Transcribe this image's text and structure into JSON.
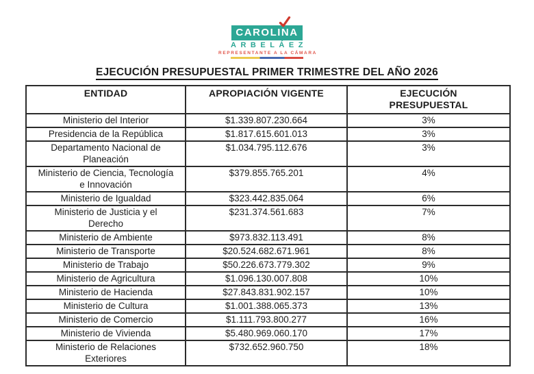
{
  "logo": {
    "name": "CAROLINA",
    "surname": "ARBELÁEZ",
    "subtitle": "REPRESENTANTE A LA CÁMARA",
    "colors": {
      "teal": "#2ca795",
      "subtitle_red": "#e0554a",
      "checkmark_red": "#cf3a2e",
      "flag_yellow": "#ecc94d",
      "flag_blue": "#4668b0",
      "flag_red": "#d94b41"
    }
  },
  "title": "EJECUCIÓN PRESUPUESTAL PRIMER TRIMESTRE DEL AÑO 2026",
  "table": {
    "columns": [
      "ENTIDAD",
      "APROPIACIÓN VIGENTE",
      "EJECUCIÓN\nPRESUPUESTAL"
    ],
    "rows": [
      {
        "entity": "Ministerio del Interior",
        "appropriation": "$1.339.807.230.664",
        "execution": "3%"
      },
      {
        "entity": "Presidencia de la República",
        "appropriation": "$1.817.615.601.013",
        "execution": "3%"
      },
      {
        "entity": "Departamento Nacional de Planeación",
        "appropriation": "$1.034.795.112.676",
        "execution": "3%"
      },
      {
        "entity": "Ministerio de Ciencia, Tecnología e Innovación",
        "appropriation": "$379.855.765.201",
        "execution": "4%"
      },
      {
        "entity": "Ministerio de Igualdad",
        "appropriation": "$323.442.835.064",
        "execution": "6%"
      },
      {
        "entity": "Ministerio de Justicia y el Derecho",
        "appropriation": "$231.374.561.683",
        "execution": "7%"
      },
      {
        "entity": "Ministerio de Ambiente",
        "appropriation": "$973.832.113.491",
        "execution": "8%"
      },
      {
        "entity": "Ministerio de Transporte",
        "appropriation": "$20.524.682.671.961",
        "execution": "8%"
      },
      {
        "entity": "Ministerio de Trabajo",
        "appropriation": "$50.226.673.779.302",
        "execution": "9%"
      },
      {
        "entity": "Ministerio de Agricultura",
        "appropriation": "$1.096.130.007.808",
        "execution": "10%"
      },
      {
        "entity": "Ministerio de Hacienda",
        "appropriation": "$27.843.831.902.157",
        "execution": "10%"
      },
      {
        "entity": "Ministerio de Cultura",
        "appropriation": "$1.001.388.065.373",
        "execution": "13%"
      },
      {
        "entity": "Ministerio de Comercio",
        "appropriation": "$1.111.793.800.277",
        "execution": "16%"
      },
      {
        "entity": "Ministerio de Vivienda",
        "appropriation": "$5.480.969.060.170",
        "execution": "17%"
      },
      {
        "entity": "Ministerio de Relaciones Exteriores",
        "appropriation": "$732.652.960.750",
        "execution": "18%"
      }
    ]
  }
}
